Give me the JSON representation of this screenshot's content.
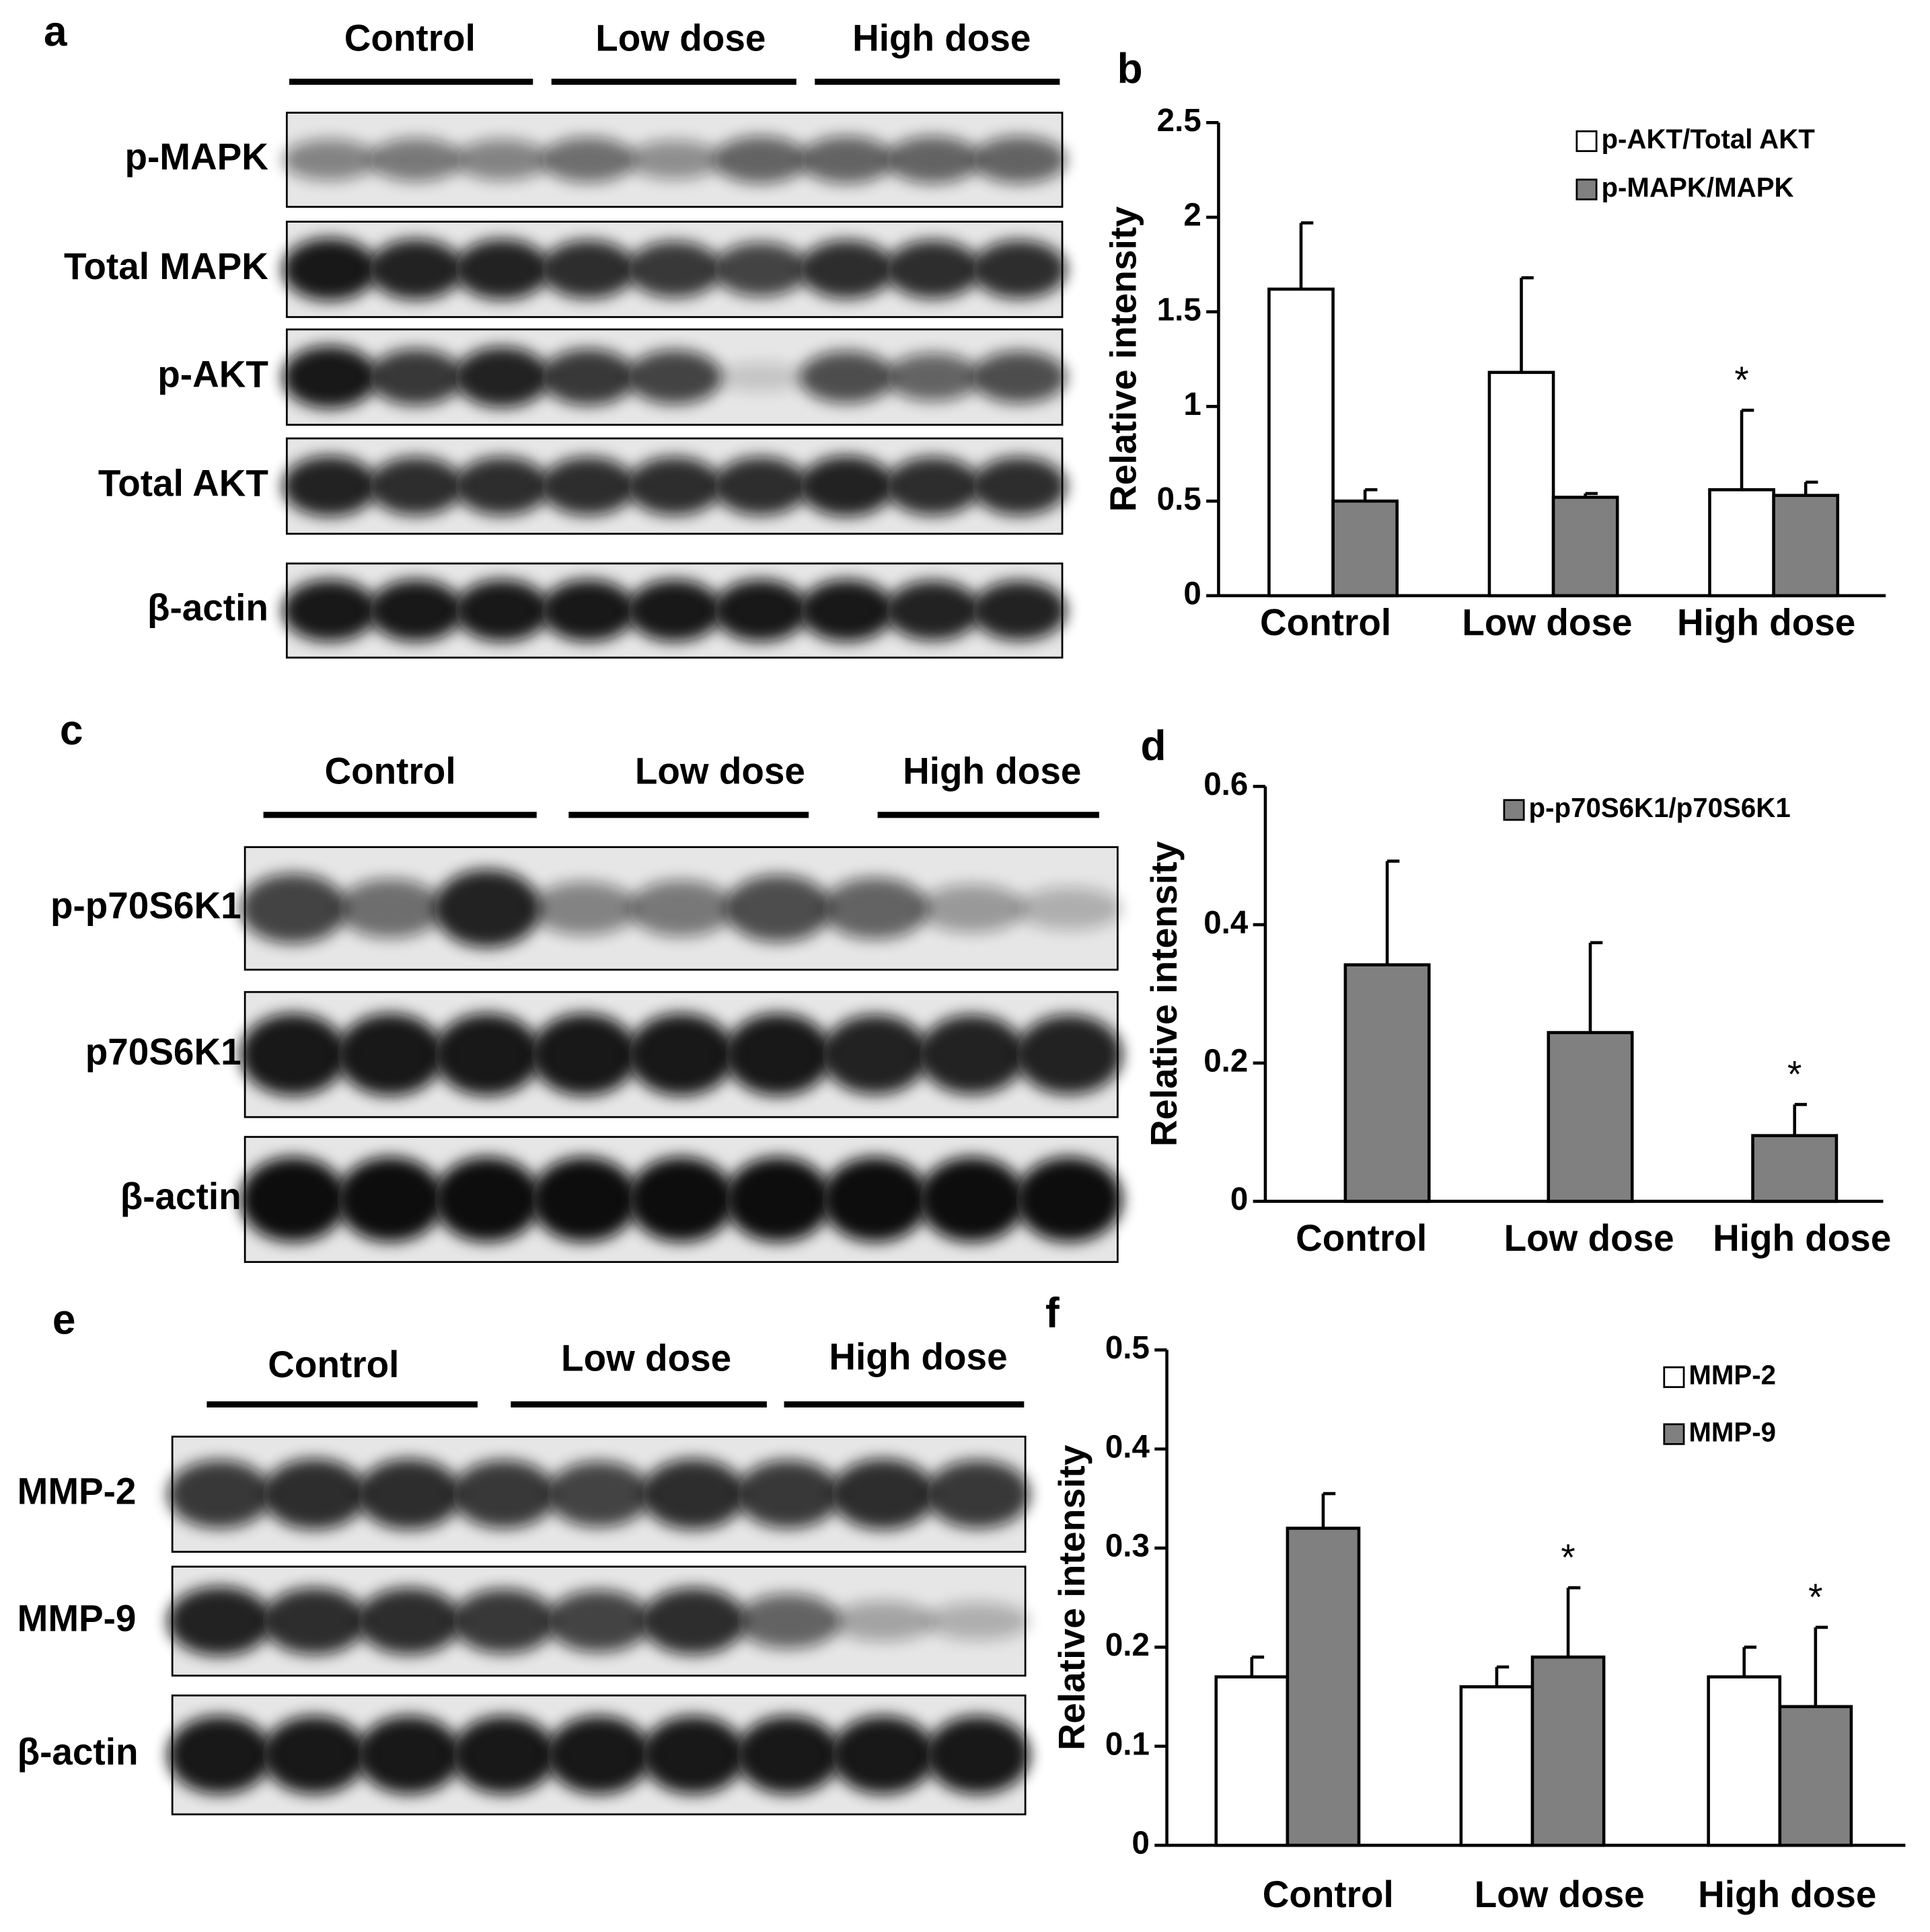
{
  "blots": [
    {
      "label": "a",
      "groups": [
        "Control",
        "Low dose",
        "High dose"
      ],
      "rows": [
        "p-MAPK",
        "Total MAPK",
        "p-AKT",
        "Total AKT",
        "β-actin"
      ]
    },
    {
      "label": "c",
      "groups": [
        "Control",
        "Low dose",
        "High dose"
      ],
      "rows": [
        "p-p70S6K1",
        "p70S6K1",
        "β-actin"
      ]
    },
    {
      "label": "e",
      "groups": [
        "Control",
        "Low dose",
        "High dose"
      ],
      "rows": [
        "MMP-2",
        "MMP-9",
        "β-actin"
      ]
    }
  ],
  "chart_data": [
    {
      "type": "bar",
      "label": "b",
      "y_label": "Relative intensity",
      "categories": [
        "Control",
        "Low dose",
        "High dose"
      ],
      "series": [
        {
          "name": "p-AKT/Total AKT",
          "color": "#ffffff",
          "values": [
            1.62,
            1.18,
            0.56
          ],
          "errors": [
            0.35,
            0.5,
            0.42
          ],
          "significance": [
            null,
            null,
            "*"
          ]
        },
        {
          "name": "p-MAPK/MAPK",
          "color": "#808080",
          "values": [
            0.5,
            0.52,
            0.53
          ],
          "errors": [
            0.06,
            0.02,
            0.07
          ],
          "significance": [
            null,
            null,
            null
          ]
        }
      ],
      "ylim": [
        0,
        2.5
      ],
      "yticks": [
        0,
        0.5,
        1,
        1.5,
        2,
        2.5
      ],
      "legend": "upper right"
    },
    {
      "type": "bar",
      "label": "d",
      "y_label": "Relative intensity",
      "categories": [
        "Control",
        "Low dose",
        "High dose"
      ],
      "series": [
        {
          "name": "p-p70S6K1/p70S6K1",
          "color": "#808080",
          "values": [
            0.342,
            0.244,
            0.095
          ],
          "errors": [
            0.15,
            0.13,
            0.045
          ],
          "significance": [
            null,
            null,
            "*"
          ]
        }
      ],
      "ylim": [
        0,
        0.6
      ],
      "yticks": [
        0,
        0.2,
        0.4,
        0.6
      ],
      "legend": "upper right"
    },
    {
      "type": "bar",
      "label": "f",
      "y_label": "Relative intensity",
      "categories": [
        "Control",
        "Low dose",
        "High dose"
      ],
      "series": [
        {
          "name": "MMP-2",
          "color": "#ffffff",
          "values": [
            0.17,
            0.16,
            0.17
          ],
          "errors": [
            0.02,
            0.02,
            0.03
          ],
          "significance": [
            null,
            null,
            null
          ]
        },
        {
          "name": "MMP-9",
          "color": "#808080",
          "values": [
            0.32,
            0.19,
            0.14
          ],
          "errors": [
            0.035,
            0.07,
            0.08
          ],
          "significance": [
            null,
            "*",
            "*"
          ]
        }
      ],
      "ylim": [
        0,
        0.5
      ],
      "yticks": [
        0,
        0.1,
        0.2,
        0.3,
        0.4,
        0.5
      ],
      "legend": "upper right"
    }
  ]
}
